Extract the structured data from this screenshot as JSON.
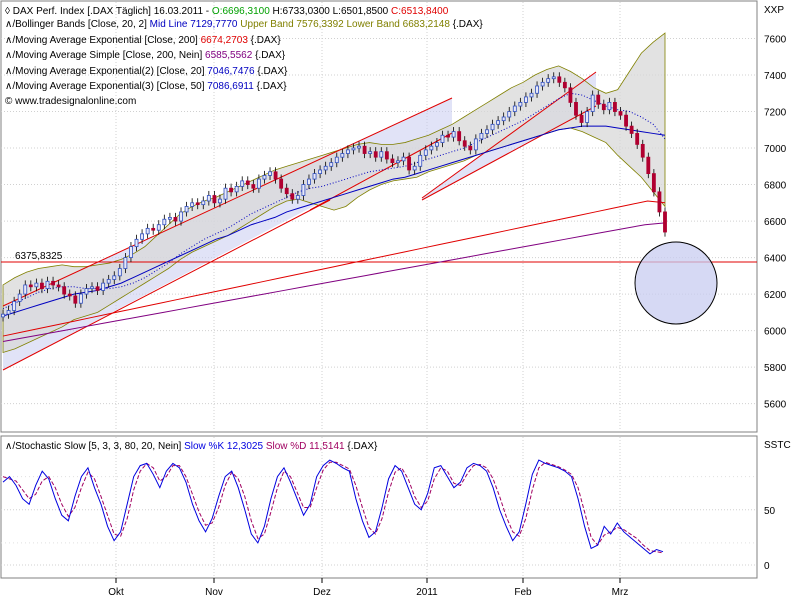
{
  "header": {
    "instrument": "DAX Perf. Index [.DAX Täglich] 16.03.2011 -",
    "ohlc": [
      {
        "label": "O:",
        "value": "6696,3100",
        "color": "#00a000"
      },
      {
        "label": "H:",
        "value": "6733,0300",
        "color": "#000000"
      },
      {
        "label": "L:",
        "value": "6501,8500",
        "color": "#000000"
      },
      {
        "label": "C:",
        "value": "6513,8400",
        "color": "#e00000"
      }
    ]
  },
  "indicators": [
    {
      "label": "Bollinger Bands [Close, 20, 2]",
      "parts": [
        {
          "text": "Mid Line 7129,7770",
          "color": "#0000c0"
        },
        {
          "text": "Upper Band 7576,3392",
          "color": "#808000"
        },
        {
          "text": "Lower Band 6683,2148",
          "color": "#808000"
        },
        {
          "text": "{.DAX}",
          "color": "#000000"
        }
      ]
    },
    {
      "label": "Moving Average Exponential [Close, 200]",
      "parts": [
        {
          "text": "6674,2703",
          "color": "#e00000"
        },
        {
          "text": "{.DAX}",
          "color": "#000000"
        }
      ]
    },
    {
      "label": "Moving Average Simple [Close, 200, Nein]",
      "parts": [
        {
          "text": "6585,5562",
          "color": "#800080"
        },
        {
          "text": "{.DAX}",
          "color": "#000000"
        }
      ]
    },
    {
      "label": "Moving Average Exponential(2) [Close, 20]",
      "parts": [
        {
          "text": "7046,7476",
          "color": "#0000c0"
        },
        {
          "text": "{.DAX}",
          "color": "#000000"
        }
      ]
    },
    {
      "label": "Moving Average Exponential(3) [Close, 50]",
      "parts": [
        {
          "text": "7086,6911",
          "color": "#0000c0"
        },
        {
          "text": "{.DAX}",
          "color": "#000000"
        }
      ]
    }
  ],
  "watermark": "www.tradesignalonline.com",
  "colors": {
    "up": "#3050c0",
    "down": "#b00030",
    "channel": "#e00000",
    "band_fill": "#d8d8d8",
    "channel_fill": "#c8ccf0"
  },
  "chart_data": [
    {
      "type": "candlestick",
      "axis_label": "XXP",
      "x_tick_labels": [
        "Okt",
        "Nov",
        "Dez",
        "2011",
        "Feb",
        "Mrz"
      ],
      "y_ticks": [
        5600,
        5800,
        6000,
        6200,
        6400,
        6600,
        6800,
        7000,
        7200,
        7400,
        7600
      ],
      "ylim": [
        5450,
        7800
      ],
      "horizontal_line": {
        "value": 6375.8325,
        "label": "6375,8325"
      },
      "close_series": [
        6090,
        6110,
        6160,
        6200,
        6250,
        6240,
        6260,
        6230,
        6270,
        6250,
        6240,
        6200,
        6190,
        6150,
        6200,
        6230,
        6240,
        6220,
        6260,
        6280,
        6300,
        6340,
        6400,
        6460,
        6500,
        6530,
        6560,
        6550,
        6580,
        6610,
        6620,
        6600,
        6650,
        6680,
        6700,
        6690,
        6710,
        6740,
        6700,
        6720,
        6780,
        6760,
        6790,
        6820,
        6800,
        6780,
        6830,
        6850,
        6870,
        6830,
        6780,
        6750,
        6720,
        6740,
        6800,
        6830,
        6860,
        6880,
        6900,
        6920,
        6950,
        6970,
        6990,
        7000,
        7010,
        6970,
        6980,
        6950,
        6980,
        6940,
        6920,
        6930,
        6950,
        6880,
        6900,
        6960,
        6990,
        7010,
        7030,
        7070,
        7060,
        7090,
        7040,
        7010,
        6990,
        7050,
        7080,
        7100,
        7130,
        7150,
        7170,
        7200,
        7230,
        7250,
        7280,
        7300,
        7340,
        7360,
        7380,
        7390,
        7360,
        7330,
        7250,
        7180,
        7140,
        7200,
        7290,
        7240,
        7210,
        7250,
        7200,
        7180,
        7120,
        7080,
        7020,
        6950,
        6860,
        6760,
        6650,
        6540
      ],
      "bollinger": {
        "upper": [
          6250,
          6290,
          6320,
          6340,
          6350,
          6360,
          6350,
          6350,
          6360,
          6370,
          6390,
          6420,
          6460,
          6520,
          6580,
          6640,
          6680,
          6710,
          6730,
          6760,
          6790,
          6820,
          6850,
          6880,
          6900,
          6920,
          6940,
          6960,
          6980,
          7000,
          7020,
          7030,
          7020,
          7020,
          7030,
          7050,
          7070,
          7100,
          7130,
          7170,
          7210,
          7250,
          7290,
          7330,
          7360,
          7400,
          7430,
          7450,
          7420,
          7380,
          7330,
          7300,
          7320,
          7420,
          7520,
          7580,
          7630
        ],
        "lower": [
          5880,
          5900,
          5930,
          5960,
          5990,
          6020,
          6060,
          6080,
          6100,
          6140,
          6180,
          6220,
          6260,
          6300,
          6340,
          6390,
          6430,
          6460,
          6490,
          6520,
          6560,
          6600,
          6640,
          6680,
          6710,
          6720,
          6700,
          6680,
          6660,
          6680,
          6730,
          6770,
          6800,
          6820,
          6830,
          6840,
          6870,
          6890,
          6910,
          6930,
          6960,
          6980,
          7000,
          7020,
          7040,
          7060,
          7080,
          7100,
          7110,
          7090,
          7060,
          7030,
          6960,
          6900,
          6840,
          6760,
          6680
        ]
      },
      "ema_20": [
        6120,
        6150,
        6180,
        6210,
        6230,
        6240,
        6240,
        6230,
        6230,
        6230,
        6240,
        6260,
        6290,
        6330,
        6370,
        6420,
        6460,
        6500,
        6530,
        6560,
        6600,
        6640,
        6670,
        6700,
        6730,
        6760,
        6780,
        6790,
        6810,
        6830,
        6850,
        6870,
        6880,
        6890,
        6900,
        6920,
        6940,
        6960,
        6980,
        7000,
        7030,
        7060,
        7090,
        7120,
        7150,
        7190,
        7230,
        7270,
        7300,
        7290,
        7260,
        7230,
        7210,
        7200,
        7170,
        7130,
        7050
      ],
      "ema_50": [
        6080,
        6100,
        6120,
        6140,
        6160,
        6180,
        6200,
        6210,
        6220,
        6240,
        6260,
        6290,
        6320,
        6350,
        6380,
        6410,
        6440,
        6470,
        6500,
        6520,
        6550,
        6580,
        6600,
        6620,
        6650,
        6670,
        6690,
        6710,
        6730,
        6750,
        6770,
        6790,
        6810,
        6830,
        6840,
        6860,
        6880,
        6900,
        6920,
        6940,
        6960,
        6980,
        7000,
        7020,
        7040,
        7060,
        7080,
        7100,
        7110,
        7120,
        7120,
        7120,
        7110,
        7100,
        7090,
        7080,
        7070
      ],
      "ema_200": [
        5970,
        5990,
        6010,
        6030,
        6050,
        6070,
        6090,
        6110,
        6130,
        6150,
        6170,
        6190,
        6210,
        6230,
        6250,
        6270,
        6290,
        6310,
        6330,
        6350,
        6370,
        6390,
        6410,
        6430,
        6450,
        6470,
        6490,
        6510,
        6530,
        6550,
        6570,
        6590,
        6610,
        6630,
        6650,
        6670,
        6690,
        6710,
        6700
      ],
      "sma_200": [
        5940,
        5960,
        5980,
        6000,
        6020,
        6040,
        6060,
        6080,
        6100,
        6120,
        6140,
        6160,
        6180,
        6200,
        6220,
        6240,
        6260,
        6280,
        6300,
        6320,
        6340,
        6360,
        6380,
        6400,
        6420,
        6440,
        6460,
        6480,
        6500,
        6520,
        6540,
        6560,
        6580,
        6590
      ]
    },
    {
      "type": "line",
      "title": "Stochastic Slow [5, 3, 3, 80, 20, Nein]",
      "series": [
        {
          "name": "Slow %K 12,3025",
          "color": "#0000e0"
        },
        {
          "name": "Slow %D 11,5141",
          "color": "#a00060"
        }
      ],
      "axis_label": "SSTC",
      "y_ticks": [
        0,
        50
      ],
      "ylim": [
        -10,
        115
      ],
      "k": [
        75,
        80,
        72,
        60,
        55,
        72,
        85,
        78,
        60,
        45,
        40,
        62,
        80,
        88,
        70,
        55,
        35,
        22,
        30,
        55,
        80,
        90,
        92,
        82,
        70,
        85,
        92,
        88,
        75,
        55,
        40,
        30,
        42,
        62,
        80,
        85,
        70,
        50,
        28,
        20,
        35,
        60,
        80,
        88,
        75,
        60,
        45,
        55,
        80,
        90,
        95,
        92,
        88,
        85,
        60,
        40,
        25,
        30,
        52,
        78,
        90,
        85,
        70,
        55,
        50,
        65,
        88,
        90,
        80,
        70,
        75,
        88,
        92,
        90,
        85,
        70,
        50,
        35,
        22,
        30,
        55,
        82,
        95,
        92,
        90,
        88,
        85,
        80,
        60,
        35,
        15,
        18,
        35,
        28,
        38,
        30,
        25,
        20,
        15,
        10,
        14,
        12
      ],
      "d": [
        80,
        78,
        76,
        68,
        60,
        64,
        76,
        80,
        70,
        55,
        44,
        52,
        70,
        84,
        78,
        62,
        45,
        28,
        26,
        42,
        68,
        85,
        92,
        88,
        76,
        80,
        90,
        90,
        80,
        64,
        48,
        36,
        38,
        52,
        72,
        84,
        78,
        62,
        40,
        24,
        28,
        48,
        70,
        85,
        80,
        66,
        52,
        52,
        70,
        86,
        93,
        93,
        90,
        87,
        72,
        52,
        34,
        28,
        42,
        66,
        84,
        88,
        78,
        62,
        52,
        58,
        78,
        88,
        85,
        74,
        72,
        82,
        90,
        91,
        88,
        78,
        62,
        44,
        30,
        26,
        42,
        68,
        88,
        93,
        91,
        89,
        86,
        82,
        70,
        48,
        25,
        18,
        27,
        30,
        34,
        32,
        28,
        24,
        18,
        13,
        12,
        11
      ]
    }
  ]
}
